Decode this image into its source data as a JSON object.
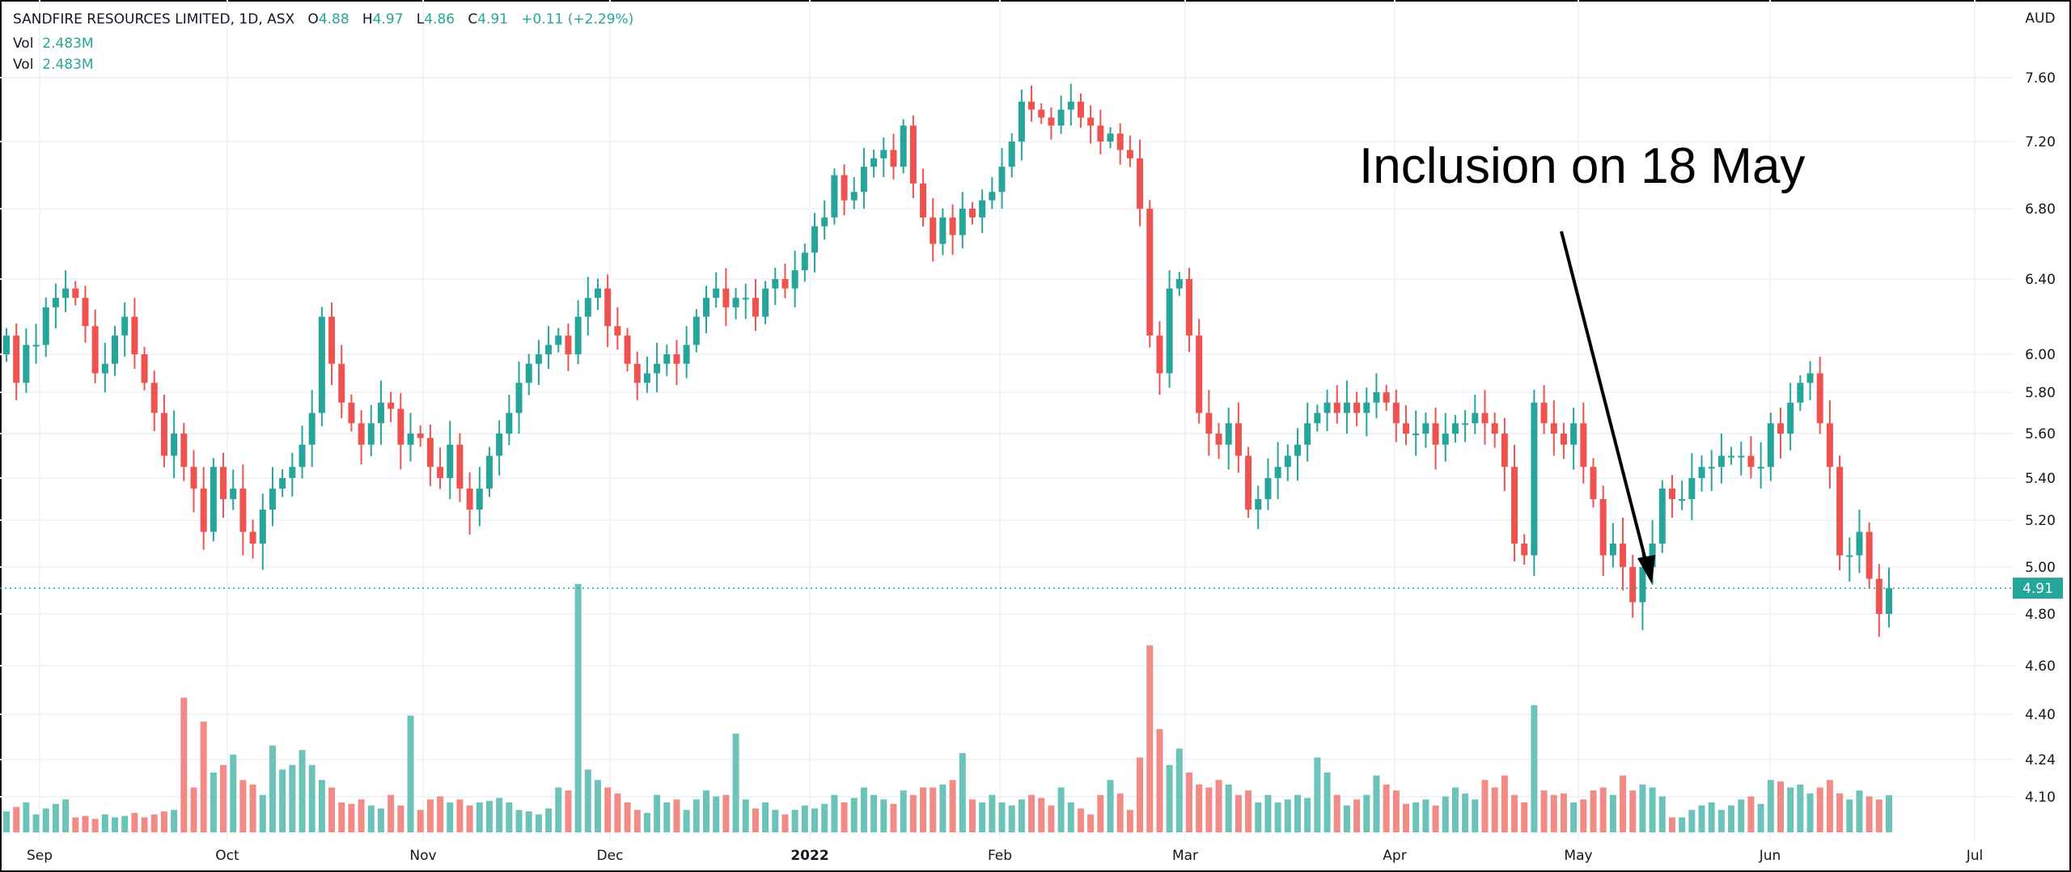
{
  "header": {
    "symbol": "SANDFIRE RESOURCES LIMITED, 1D, ASX",
    "o_label": "O",
    "o_value": "4.88",
    "h_label": "H",
    "h_value": "4.97",
    "l_label": "L",
    "l_value": "4.86",
    "c_label": "C",
    "c_value": "4.91",
    "change": "+0.11 (+2.29%)",
    "vol_rows": [
      {
        "label": "Vol",
        "value": "2.483M"
      },
      {
        "label": "Vol",
        "value": "2.483M"
      }
    ]
  },
  "annotation": "Inclusion on 18 May",
  "colors": {
    "up": "#26a69a",
    "down": "#ef5350",
    "up_vol": "#6cc3ba",
    "down_vol": "#f28b86",
    "grid": "#f0f3fa"
  },
  "chart_data": {
    "type": "candlestick",
    "title": "SANDFIRE RESOURCES LIMITED, 1D, ASX",
    "currency_label": "AUD",
    "y_ticks": [
      "7.60",
      "7.20",
      "6.80",
      "6.40",
      "6.00",
      "5.80",
      "5.60",
      "5.40",
      "5.20",
      "5.00",
      "4.80",
      "4.60",
      "4.40",
      "4.24",
      "4.10"
    ],
    "x_ticks": [
      "Sep",
      "Oct",
      "Nov",
      "Dec",
      "2022",
      "Feb",
      "Mar",
      "Apr",
      "May",
      "Jun",
      "Jul"
    ],
    "last_price": "4.91",
    "close": [
      6.1,
      5.85,
      6.05,
      6.05,
      6.25,
      6.3,
      6.35,
      6.3,
      6.15,
      5.9,
      5.95,
      6.1,
      6.2,
      6.0,
      5.85,
      5.7,
      5.5,
      5.6,
      5.45,
      5.35,
      5.15,
      5.45,
      5.3,
      5.35,
      5.15,
      5.1,
      5.25,
      5.35,
      5.4,
      5.45,
      5.55,
      5.7,
      6.2,
      5.95,
      5.75,
      5.65,
      5.55,
      5.65,
      5.75,
      5.72,
      5.55,
      5.6,
      5.58,
      5.45,
      5.4,
      5.55,
      5.35,
      5.25,
      5.35,
      5.5,
      5.6,
      5.7,
      5.85,
      5.95,
      6.0,
      6.05,
      6.1,
      6.0,
      6.2,
      6.3,
      6.35,
      6.15,
      6.1,
      5.95,
      5.85,
      5.9,
      5.95,
      6.0,
      5.95,
      6.05,
      6.2,
      6.3,
      6.35,
      6.25,
      6.3,
      6.3,
      6.2,
      6.35,
      6.4,
      6.35,
      6.45,
      6.55,
      6.7,
      6.75,
      7.0,
      6.85,
      6.9,
      7.05,
      7.1,
      7.15,
      7.05,
      7.3,
      6.95,
      6.75,
      6.6,
      6.75,
      6.65,
      6.8,
      6.75,
      6.85,
      6.9,
      7.05,
      7.2,
      7.45,
      7.4,
      7.35,
      7.3,
      7.4,
      7.45,
      7.35,
      7.3,
      7.2,
      7.25,
      7.15,
      7.1,
      6.8,
      6.1,
      5.9,
      6.35,
      6.4,
      6.1,
      5.7,
      5.6,
      5.55,
      5.65,
      5.5,
      5.25,
      5.3,
      5.4,
      5.45,
      5.5,
      5.55,
      5.65,
      5.7,
      5.75,
      5.7,
      5.75,
      5.7,
      5.75,
      5.8,
      5.75,
      5.65,
      5.6,
      5.6,
      5.65,
      5.55,
      5.6,
      5.65,
      5.65,
      5.7,
      5.65,
      5.6,
      5.45,
      5.1,
      5.05,
      5.75,
      5.65,
      5.6,
      5.55,
      5.65,
      5.45,
      5.3,
      5.05,
      5.1,
      5.0,
      4.85,
      5.0,
      5.1,
      5.35,
      5.3,
      5.3,
      5.4,
      5.45,
      5.45,
      5.5,
      5.5,
      5.5,
      5.45,
      5.45,
      5.65,
      5.6,
      5.75,
      5.85,
      5.9,
      5.65,
      5.45,
      5.05,
      5.05,
      5.15,
      4.95,
      4.8,
      4.91
    ],
    "volume_millions": [
      1.4,
      1.7,
      2.0,
      1.2,
      1.6,
      1.9,
      2.2,
      1.0,
      1.1,
      0.9,
      1.2,
      1.0,
      1.1,
      1.3,
      1.0,
      1.2,
      1.4,
      1.5,
      9.0,
      3.0,
      7.4,
      4.0,
      4.5,
      5.2,
      3.5,
      3.2,
      2.5,
      5.8,
      4.2,
      4.5,
      5.5,
      4.5,
      3.5,
      3.0,
      2.0,
      1.9,
      2.2,
      1.8,
      1.6,
      2.5,
      1.8,
      7.8,
      1.5,
      2.2,
      2.4,
      2.0,
      2.2,
      1.8,
      2.0,
      2.1,
      2.3,
      2.0,
      1.5,
      1.4,
      1.2,
      1.6,
      3.0,
      2.8,
      16.6,
      4.2,
      3.5,
      3.0,
      2.6,
      2.0,
      1.5,
      1.3,
      2.5,
      2.0,
      2.2,
      1.5,
      2.2,
      2.8,
      2.4,
      2.5,
      6.6,
      2.2,
      1.6,
      2.0,
      1.5,
      1.2,
      1.5,
      1.8,
      1.6,
      1.9,
      2.5,
      2.0,
      2.3,
      3.0,
      2.5,
      2.2,
      1.9,
      2.8,
      2.5,
      3.0,
      3.0,
      3.2,
      3.5,
      5.3,
      2.2,
      2.0,
      2.5,
      2.0,
      1.8,
      2.2,
      2.5,
      2.3,
      1.8,
      3.0,
      2.0,
      1.6,
      1.2,
      2.5,
      3.5,
      2.6,
      1.5,
      5.0,
      12.5,
      6.9,
      4.5,
      5.6,
      4.0,
      3.2,
      3.0,
      3.5,
      3.2,
      2.5,
      2.8,
      2.0,
      2.5,
      2.0,
      2.2,
      2.5,
      2.3,
      5.0,
      4.0,
      2.5,
      1.8,
      2.2,
      2.5,
      3.8,
      3.2,
      2.8,
      1.9,
      2.0,
      2.2,
      1.8,
      2.4,
      3.0,
      2.6,
      2.2,
      3.5,
      3.0,
      3.8,
      2.5,
      2.0,
      8.5,
      2.8,
      2.5,
      2.6,
      2.0,
      2.2,
      2.8,
      3.0,
      2.5,
      3.8,
      2.8,
      3.2,
      3.0,
      2.4,
      1.0,
      1.0,
      1.5,
      1.8,
      2.0,
      1.5,
      1.8,
      2.2,
      2.4,
      1.9,
      3.5,
      3.4,
      3.0,
      3.2,
      2.6,
      3.0,
      3.5,
      2.6,
      2.2,
      2.8,
      2.4,
      2.2,
      2.483
    ],
    "first_open": 6.0,
    "grid": true
  }
}
